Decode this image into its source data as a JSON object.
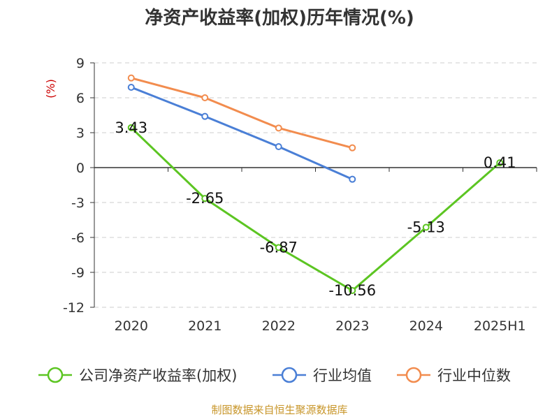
{
  "chart_data": {
    "type": "line",
    "title": "净资产收益率(加权)历年情况(%)",
    "ylabel": "(%)",
    "categories": [
      "2020",
      "2021",
      "2022",
      "2023",
      "2024",
      "2025H1"
    ],
    "ylim": [
      -12,
      9
    ],
    "yticks": [
      9,
      6,
      3,
      0,
      -3,
      -6,
      -9,
      -12
    ],
    "ytick_labels": [
      "9",
      "6",
      "3",
      "0",
      "-3",
      "-6",
      "-9",
      "-12"
    ],
    "grid": true,
    "legend_position": "bottom",
    "series": [
      {
        "name": "公司净资产收益率(加权)",
        "color": "#5cc522",
        "values": [
          3.43,
          -2.65,
          -6.87,
          -10.56,
          -5.13,
          0.41
        ],
        "labels": [
          "3.43",
          "-2.65",
          "-6.87",
          "-10.56",
          "-5.13",
          "0.41"
        ]
      },
      {
        "name": "行业均值",
        "color": "#4a7fd6",
        "values": [
          6.9,
          4.4,
          1.8,
          -1.0,
          null,
          null
        ]
      },
      {
        "name": "行业中位数",
        "color": "#f28c4e",
        "values": [
          7.7,
          6.0,
          3.4,
          1.7,
          null,
          null
        ]
      }
    ],
    "source": "制图数据来自恒生聚源数据库"
  }
}
